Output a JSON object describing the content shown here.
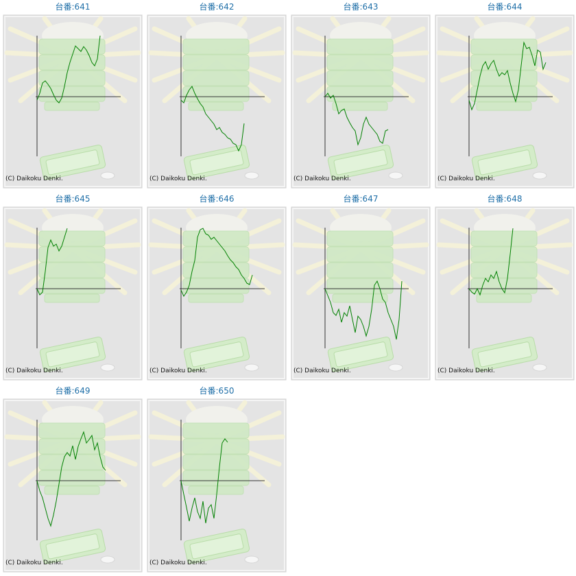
{
  "chart_data": [
    {
      "type": "line",
      "title": "台番:641",
      "credit": "(C) Daikoku Denki.",
      "color": "#008000",
      "xlim": [
        0,
        30
      ],
      "ylim": [
        -100,
        100
      ],
      "values": [
        -5,
        5,
        20,
        23,
        18,
        12,
        3,
        -5,
        -9,
        -2,
        15,
        35,
        50,
        62,
        74,
        70,
        66,
        73,
        68,
        60,
        50,
        45,
        55,
        89
      ]
    },
    {
      "type": "line",
      "title": "台番:642",
      "credit": "(C) Daikoku Denki.",
      "color": "#008000",
      "xlim": [
        0,
        30
      ],
      "ylim": [
        -100,
        100
      ],
      "values": [
        -5,
        -9,
        2,
        10,
        15,
        5,
        -3,
        -10,
        -15,
        -25,
        -30,
        -35,
        -40,
        -48,
        -45,
        -52,
        -55,
        -60,
        -62,
        -68,
        -70,
        -79,
        -70,
        -39
      ]
    },
    {
      "type": "line",
      "title": "台番:643",
      "credit": "(C) Daikoku Denki.",
      "color": "#008000",
      "xlim": [
        0,
        30
      ],
      "ylim": [
        -100,
        100
      ],
      "values": [
        0,
        5,
        -2,
        2,
        -10,
        -25,
        -20,
        -18,
        -30,
        -38,
        -45,
        -50,
        -70,
        -60,
        -40,
        -30,
        -40,
        -45,
        -50,
        -55,
        -65,
        -68,
        -50,
        -48
      ]
    },
    {
      "type": "line",
      "title": "台番:644",
      "credit": "(C) Daikoku Denki.",
      "color": "#008000",
      "xlim": [
        0,
        30
      ],
      "ylim": [
        -100,
        100
      ],
      "values": [
        -5,
        -19,
        -10,
        10,
        30,
        45,
        51,
        40,
        48,
        53,
        40,
        30,
        35,
        32,
        38,
        20,
        5,
        -7,
        10,
        45,
        79,
        70,
        72,
        60,
        45,
        68,
        65,
        40,
        50
      ]
    },
    {
      "type": "line",
      "title": "台番:645",
      "credit": "(C) Daikoku Denki.",
      "color": "#008000",
      "xlim": [
        0,
        30
      ],
      "ylim": [
        -100,
        100
      ],
      "values": [
        0,
        -9,
        -5,
        25,
        60,
        71,
        62,
        65,
        55,
        62,
        75,
        88
      ]
    },
    {
      "type": "line",
      "title": "台番:646",
      "credit": "(C) Daikoku Denki.",
      "color": "#008000",
      "xlim": [
        0,
        30
      ],
      "ylim": [
        -100,
        100
      ],
      "values": [
        -2,
        -11,
        -5,
        5,
        25,
        41,
        75,
        86,
        88,
        80,
        78,
        72,
        75,
        70,
        65,
        60,
        55,
        48,
        42,
        38,
        32,
        28,
        20,
        15,
        8,
        6,
        20
      ]
    },
    {
      "type": "line",
      "title": "台番:647",
      "credit": "(C) Daikoku Denki.",
      "color": "#008000",
      "xlim": [
        0,
        30
      ],
      "ylim": [
        -100,
        100
      ],
      "values": [
        0,
        -10,
        -20,
        -35,
        -39,
        -30,
        -49,
        -35,
        -40,
        -25,
        -45,
        -64,
        -40,
        -45,
        -55,
        -69,
        -55,
        -30,
        5,
        11,
        0,
        -15,
        -20,
        -35,
        -45,
        -55,
        -74,
        -45,
        11
      ]
    },
    {
      "type": "line",
      "title": "台番:648",
      "credit": "(C) Daikoku Denki.",
      "color": "#008000",
      "xlim": [
        0,
        30
      ],
      "ylim": [
        -100,
        100
      ],
      "values": [
        0,
        -5,
        -8,
        0,
        -9,
        5,
        15,
        10,
        20,
        15,
        25,
        10,
        0,
        -6,
        15,
        50,
        88
      ]
    },
    {
      "type": "line",
      "title": "台番:649",
      "credit": "(C) Daikoku Denki.",
      "color": "#008000",
      "xlim": [
        0,
        30
      ],
      "ylim": [
        -100,
        100
      ],
      "values": [
        0,
        -15,
        -25,
        -40,
        -55,
        -66,
        -50,
        -30,
        -5,
        20,
        35,
        41,
        36,
        51,
        31,
        50,
        61,
        71,
        55,
        60,
        66,
        45,
        55,
        35,
        20,
        15
      ]
    },
    {
      "type": "line",
      "title": "台番:650",
      "credit": "(C) Daikoku Denki.",
      "color": "#008000",
      "xlim": [
        0,
        30
      ],
      "ylim": [
        -100,
        100
      ],
      "values": [
        0,
        -20,
        -39,
        -59,
        -40,
        -25,
        -45,
        -55,
        -30,
        -62,
        -40,
        -35,
        -55,
        -20,
        20,
        55,
        61,
        56
      ]
    }
  ]
}
